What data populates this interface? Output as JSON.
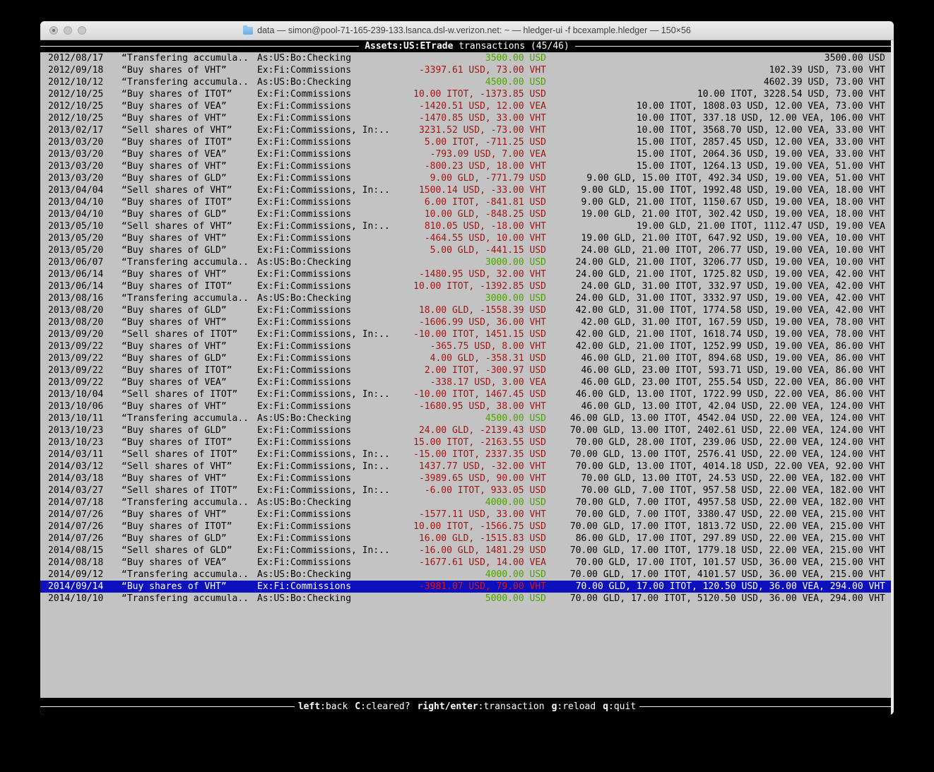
{
  "window": {
    "title": "data — simon@pool-71-165-239-133.lsanca.dsl-w.verizon.net: ~ — hledger-ui -f bcexample.hledger — 150×56",
    "icons": {
      "titlebar_folder": "folder-icon",
      "close": "close-button",
      "minimize": "minimize-button",
      "zoom": "zoom-button"
    }
  },
  "colors": {
    "terminal_bg": "#c3c3c3",
    "selection_bg": "#0d11bd",
    "amount_positive": "#4da400",
    "amount_negative": "#a01616",
    "amount_negative_selected": "#e01414"
  },
  "tui": {
    "header": {
      "account": "Assets:US:ETrade",
      "caption": " transactions (45/46)"
    },
    "footer_hints": [
      {
        "key": "left",
        "label": "back"
      },
      {
        "key": "C",
        "label": "cleared?"
      },
      {
        "key": "right/enter",
        "label": "transaction"
      },
      {
        "key": "g",
        "label": "reload"
      },
      {
        "key": "q",
        "label": "quit"
      }
    ]
  },
  "register": {
    "rows": [
      {
        "date": "2012/08/17",
        "description": "“Transfering accumula..",
        "account": "As:US:Bo:Checking",
        "amount": "3500.00 USD",
        "amount_type": "pos",
        "balance": "3500.00 USD",
        "selected": false
      },
      {
        "date": "2012/09/18",
        "description": "“Buy shares of VHT”",
        "account": "Ex:Fi:Commissions",
        "amount": "-3397.61 USD, 73.00 VHT",
        "amount_type": "neg",
        "balance": "102.39 USD, 73.00 VHT",
        "selected": false
      },
      {
        "date": "2012/10/12",
        "description": "“Transfering accumula..",
        "account": "As:US:Bo:Checking",
        "amount": "4500.00 USD",
        "amount_type": "pos",
        "balance": "4602.39 USD, 73.00 VHT",
        "selected": false
      },
      {
        "date": "2012/10/25",
        "description": "“Buy shares of ITOT”",
        "account": "Ex:Fi:Commissions",
        "amount": "10.00 ITOT, -1373.85 USD",
        "amount_type": "neg",
        "balance": "10.00 ITOT, 3228.54 USD, 73.00 VHT",
        "selected": false
      },
      {
        "date": "2012/10/25",
        "description": "“Buy shares of VEA”",
        "account": "Ex:Fi:Commissions",
        "amount": "-1420.51 USD, 12.00 VEA",
        "amount_type": "neg",
        "balance": "10.00 ITOT, 1808.03 USD, 12.00 VEA, 73.00 VHT",
        "selected": false
      },
      {
        "date": "2012/10/25",
        "description": "“Buy shares of VHT”",
        "account": "Ex:Fi:Commissions",
        "amount": "-1470.85 USD, 33.00 VHT",
        "amount_type": "neg",
        "balance": "10.00 ITOT, 337.18 USD, 12.00 VEA, 106.00 VHT",
        "selected": false
      },
      {
        "date": "2013/02/17",
        "description": "“Sell shares of VHT”",
        "account": "Ex:Fi:Commissions, In:..",
        "amount": "3231.52 USD, -73.00 VHT",
        "amount_type": "neg",
        "balance": "10.00 ITOT, 3568.70 USD, 12.00 VEA, 33.00 VHT",
        "selected": false
      },
      {
        "date": "2013/03/20",
        "description": "“Buy shares of ITOT”",
        "account": "Ex:Fi:Commissions",
        "amount": "5.00 ITOT, -711.25 USD",
        "amount_type": "neg",
        "balance": "15.00 ITOT, 2857.45 USD, 12.00 VEA, 33.00 VHT",
        "selected": false
      },
      {
        "date": "2013/03/20",
        "description": "“Buy shares of VEA”",
        "account": "Ex:Fi:Commissions",
        "amount": "-793.09 USD, 7.00 VEA",
        "amount_type": "neg",
        "balance": "15.00 ITOT, 2064.36 USD, 19.00 VEA, 33.00 VHT",
        "selected": false
      },
      {
        "date": "2013/03/20",
        "description": "“Buy shares of VHT”",
        "account": "Ex:Fi:Commissions",
        "amount": "-800.23 USD, 18.00 VHT",
        "amount_type": "neg",
        "balance": "15.00 ITOT, 1264.13 USD, 19.00 VEA, 51.00 VHT",
        "selected": false
      },
      {
        "date": "2013/03/20",
        "description": "“Buy shares of GLD”",
        "account": "Ex:Fi:Commissions",
        "amount": "9.00 GLD, -771.79 USD",
        "amount_type": "neg",
        "balance": "9.00 GLD, 15.00 ITOT, 492.34 USD, 19.00 VEA, 51.00 VHT",
        "selected": false
      },
      {
        "date": "2013/04/04",
        "description": "“Sell shares of VHT”",
        "account": "Ex:Fi:Commissions, In:..",
        "amount": "1500.14 USD, -33.00 VHT",
        "amount_type": "neg",
        "balance": "9.00 GLD, 15.00 ITOT, 1992.48 USD, 19.00 VEA, 18.00 VHT",
        "selected": false
      },
      {
        "date": "2013/04/10",
        "description": "“Buy shares of ITOT”",
        "account": "Ex:Fi:Commissions",
        "amount": "6.00 ITOT, -841.81 USD",
        "amount_type": "neg",
        "balance": "9.00 GLD, 21.00 ITOT, 1150.67 USD, 19.00 VEA, 18.00 VHT",
        "selected": false
      },
      {
        "date": "2013/04/10",
        "description": "“Buy shares of GLD”",
        "account": "Ex:Fi:Commissions",
        "amount": "10.00 GLD, -848.25 USD",
        "amount_type": "neg",
        "balance": "19.00 GLD, 21.00 ITOT, 302.42 USD, 19.00 VEA, 18.00 VHT",
        "selected": false
      },
      {
        "date": "2013/05/10",
        "description": "“Sell shares of VHT”",
        "account": "Ex:Fi:Commissions, In:..",
        "amount": "810.05 USD, -18.00 VHT",
        "amount_type": "neg",
        "balance": "19.00 GLD, 21.00 ITOT, 1112.47 USD, 19.00 VEA",
        "selected": false
      },
      {
        "date": "2013/05/20",
        "description": "“Buy shares of VHT”",
        "account": "Ex:Fi:Commissions",
        "amount": "-464.55 USD, 10.00 VHT",
        "amount_type": "neg",
        "balance": "19.00 GLD, 21.00 ITOT, 647.92 USD, 19.00 VEA, 10.00 VHT",
        "selected": false
      },
      {
        "date": "2013/05/20",
        "description": "“Buy shares of GLD”",
        "account": "Ex:Fi:Commissions",
        "amount": "5.00 GLD, -441.15 USD",
        "amount_type": "neg",
        "balance": "24.00 GLD, 21.00 ITOT, 206.77 USD, 19.00 VEA, 10.00 VHT",
        "selected": false
      },
      {
        "date": "2013/06/07",
        "description": "“Transfering accumula..",
        "account": "As:US:Bo:Checking",
        "amount": "3000.00 USD",
        "amount_type": "pos",
        "balance": "24.00 GLD, 21.00 ITOT, 3206.77 USD, 19.00 VEA, 10.00 VHT",
        "selected": false
      },
      {
        "date": "2013/06/14",
        "description": "“Buy shares of VHT”",
        "account": "Ex:Fi:Commissions",
        "amount": "-1480.95 USD, 32.00 VHT",
        "amount_type": "neg",
        "balance": "24.00 GLD, 21.00 ITOT, 1725.82 USD, 19.00 VEA, 42.00 VHT",
        "selected": false
      },
      {
        "date": "2013/06/14",
        "description": "“Buy shares of ITOT”",
        "account": "Ex:Fi:Commissions",
        "amount": "10.00 ITOT, -1392.85 USD",
        "amount_type": "neg",
        "balance": "24.00 GLD, 31.00 ITOT, 332.97 USD, 19.00 VEA, 42.00 VHT",
        "selected": false
      },
      {
        "date": "2013/08/16",
        "description": "“Transfering accumula..",
        "account": "As:US:Bo:Checking",
        "amount": "3000.00 USD",
        "amount_type": "pos",
        "balance": "24.00 GLD, 31.00 ITOT, 3332.97 USD, 19.00 VEA, 42.00 VHT",
        "selected": false
      },
      {
        "date": "2013/08/20",
        "description": "“Buy shares of GLD”",
        "account": "Ex:Fi:Commissions",
        "amount": "18.00 GLD, -1558.39 USD",
        "amount_type": "neg",
        "balance": "42.00 GLD, 31.00 ITOT, 1774.58 USD, 19.00 VEA, 42.00 VHT",
        "selected": false
      },
      {
        "date": "2013/08/20",
        "description": "“Buy shares of VHT”",
        "account": "Ex:Fi:Commissions",
        "amount": "-1606.99 USD, 36.00 VHT",
        "amount_type": "neg",
        "balance": "42.00 GLD, 31.00 ITOT, 167.59 USD, 19.00 VEA, 78.00 VHT",
        "selected": false
      },
      {
        "date": "2013/09/20",
        "description": "“Sell shares of ITOT”",
        "account": "Ex:Fi:Commissions, In:..",
        "amount": "-10.00 ITOT, 1451.15 USD",
        "amount_type": "neg",
        "balance": "42.00 GLD, 21.00 ITOT, 1618.74 USD, 19.00 VEA, 78.00 VHT",
        "selected": false
      },
      {
        "date": "2013/09/22",
        "description": "“Buy shares of VHT”",
        "account": "Ex:Fi:Commissions",
        "amount": "-365.75 USD, 8.00 VHT",
        "amount_type": "neg",
        "balance": "42.00 GLD, 21.00 ITOT, 1252.99 USD, 19.00 VEA, 86.00 VHT",
        "selected": false
      },
      {
        "date": "2013/09/22",
        "description": "“Buy shares of GLD”",
        "account": "Ex:Fi:Commissions",
        "amount": "4.00 GLD, -358.31 USD",
        "amount_type": "neg",
        "balance": "46.00 GLD, 21.00 ITOT, 894.68 USD, 19.00 VEA, 86.00 VHT",
        "selected": false
      },
      {
        "date": "2013/09/22",
        "description": "“Buy shares of ITOT”",
        "account": "Ex:Fi:Commissions",
        "amount": "2.00 ITOT, -300.97 USD",
        "amount_type": "neg",
        "balance": "46.00 GLD, 23.00 ITOT, 593.71 USD, 19.00 VEA, 86.00 VHT",
        "selected": false
      },
      {
        "date": "2013/09/22",
        "description": "“Buy shares of VEA”",
        "account": "Ex:Fi:Commissions",
        "amount": "-338.17 USD, 3.00 VEA",
        "amount_type": "neg",
        "balance": "46.00 GLD, 23.00 ITOT, 255.54 USD, 22.00 VEA, 86.00 VHT",
        "selected": false
      },
      {
        "date": "2013/10/04",
        "description": "“Sell shares of ITOT”",
        "account": "Ex:Fi:Commissions, In:..",
        "amount": "-10.00 ITOT, 1467.45 USD",
        "amount_type": "neg",
        "balance": "46.00 GLD, 13.00 ITOT, 1722.99 USD, 22.00 VEA, 86.00 VHT",
        "selected": false
      },
      {
        "date": "2013/10/06",
        "description": "“Buy shares of VHT”",
        "account": "Ex:Fi:Commissions",
        "amount": "-1680.95 USD, 38.00 VHT",
        "amount_type": "neg",
        "balance": "46.00 GLD, 13.00 ITOT, 42.04 USD, 22.00 VEA, 124.00 VHT",
        "selected": false
      },
      {
        "date": "2013/10/11",
        "description": "“Transfering accumula..",
        "account": "As:US:Bo:Checking",
        "amount": "4500.00 USD",
        "amount_type": "pos",
        "balance": "46.00 GLD, 13.00 ITOT, 4542.04 USD, 22.00 VEA, 124.00 VHT",
        "selected": false
      },
      {
        "date": "2013/10/23",
        "description": "“Buy shares of GLD”",
        "account": "Ex:Fi:Commissions",
        "amount": "24.00 GLD, -2139.43 USD",
        "amount_type": "neg",
        "balance": "70.00 GLD, 13.00 ITOT, 2402.61 USD, 22.00 VEA, 124.00 VHT",
        "selected": false
      },
      {
        "date": "2013/10/23",
        "description": "“Buy shares of ITOT”",
        "account": "Ex:Fi:Commissions",
        "amount": "15.00 ITOT, -2163.55 USD",
        "amount_type": "neg",
        "balance": "70.00 GLD, 28.00 ITOT, 239.06 USD, 22.00 VEA, 124.00 VHT",
        "selected": false
      },
      {
        "date": "2014/03/11",
        "description": "“Sell shares of ITOT”",
        "account": "Ex:Fi:Commissions, In:..",
        "amount": "-15.00 ITOT, 2337.35 USD",
        "amount_type": "neg",
        "balance": "70.00 GLD, 13.00 ITOT, 2576.41 USD, 22.00 VEA, 124.00 VHT",
        "selected": false
      },
      {
        "date": "2014/03/12",
        "description": "“Sell shares of VHT”",
        "account": "Ex:Fi:Commissions, In:..",
        "amount": "1437.77 USD, -32.00 VHT",
        "amount_type": "neg",
        "balance": "70.00 GLD, 13.00 ITOT, 4014.18 USD, 22.00 VEA, 92.00 VHT",
        "selected": false
      },
      {
        "date": "2014/03/18",
        "description": "“Buy shares of VHT”",
        "account": "Ex:Fi:Commissions",
        "amount": "-3989.65 USD, 90.00 VHT",
        "amount_type": "neg",
        "balance": "70.00 GLD, 13.00 ITOT, 24.53 USD, 22.00 VEA, 182.00 VHT",
        "selected": false
      },
      {
        "date": "2014/03/27",
        "description": "“Sell shares of ITOT”",
        "account": "Ex:Fi:Commissions, In:..",
        "amount": "-6.00 ITOT, 933.05 USD",
        "amount_type": "neg",
        "balance": "70.00 GLD, 7.00 ITOT, 957.58 USD, 22.00 VEA, 182.00 VHT",
        "selected": false
      },
      {
        "date": "2014/07/18",
        "description": "“Transfering accumula..",
        "account": "As:US:Bo:Checking",
        "amount": "4000.00 USD",
        "amount_type": "pos",
        "balance": "70.00 GLD, 7.00 ITOT, 4957.58 USD, 22.00 VEA, 182.00 VHT",
        "selected": false
      },
      {
        "date": "2014/07/26",
        "description": "“Buy shares of VHT”",
        "account": "Ex:Fi:Commissions",
        "amount": "-1577.11 USD, 33.00 VHT",
        "amount_type": "neg",
        "balance": "70.00 GLD, 7.00 ITOT, 3380.47 USD, 22.00 VEA, 215.00 VHT",
        "selected": false
      },
      {
        "date": "2014/07/26",
        "description": "“Buy shares of ITOT”",
        "account": "Ex:Fi:Commissions",
        "amount": "10.00 ITOT, -1566.75 USD",
        "amount_type": "neg",
        "balance": "70.00 GLD, 17.00 ITOT, 1813.72 USD, 22.00 VEA, 215.00 VHT",
        "selected": false
      },
      {
        "date": "2014/07/26",
        "description": "“Buy shares of GLD”",
        "account": "Ex:Fi:Commissions",
        "amount": "16.00 GLD, -1515.83 USD",
        "amount_type": "neg",
        "balance": "86.00 GLD, 17.00 ITOT, 297.89 USD, 22.00 VEA, 215.00 VHT",
        "selected": false
      },
      {
        "date": "2014/08/15",
        "description": "“Sell shares of GLD”",
        "account": "Ex:Fi:Commissions, In:..",
        "amount": "-16.00 GLD, 1481.29 USD",
        "amount_type": "neg",
        "balance": "70.00 GLD, 17.00 ITOT, 1779.18 USD, 22.00 VEA, 215.00 VHT",
        "selected": false
      },
      {
        "date": "2014/08/18",
        "description": "“Buy shares of VEA”",
        "account": "Ex:Fi:Commissions",
        "amount": "-1677.61 USD, 14.00 VEA",
        "amount_type": "neg",
        "balance": "70.00 GLD, 17.00 ITOT, 101.57 USD, 36.00 VEA, 215.00 VHT",
        "selected": false
      },
      {
        "date": "2014/09/12",
        "description": "“Transfering accumula..",
        "account": "As:US:Bo:Checking",
        "amount": "4000.00 USD",
        "amount_type": "pos",
        "balance": "70.00 GLD, 17.00 ITOT, 4101.57 USD, 36.00 VEA, 215.00 VHT",
        "selected": false
      },
      {
        "date": "2014/09/14",
        "description": "“Buy shares of VHT”",
        "account": "Ex:Fi:Commissions",
        "amount": "-3981.07 USD, 79.00 VHT",
        "amount_type": "neg",
        "balance": "70.00 GLD, 17.00 ITOT, 120.50 USD, 36.00 VEA, 294.00 VHT",
        "selected": true
      },
      {
        "date": "2014/10/10",
        "description": "“Transfering accumula..",
        "account": "As:US:Bo:Checking",
        "amount": "5000.00 USD",
        "amount_type": "pos",
        "balance": "70.00 GLD, 17.00 ITOT, 5120.50 USD, 36.00 VEA, 294.00 VHT",
        "selected": false
      }
    ]
  }
}
